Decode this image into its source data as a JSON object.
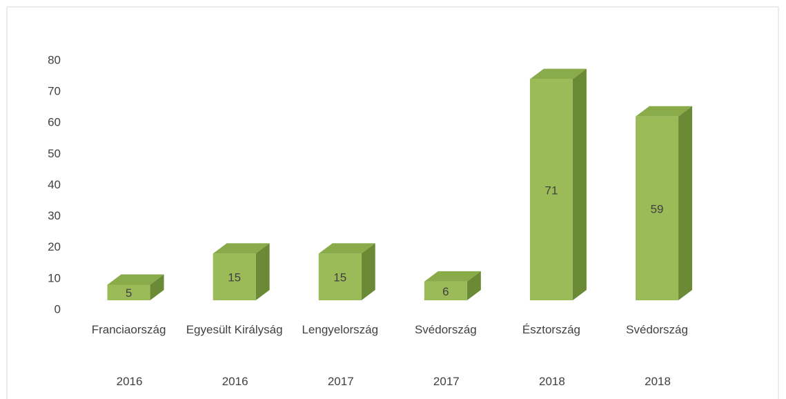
{
  "chart_data": {
    "type": "bar3d",
    "categories": [
      "Franciaország",
      "Egyesült Királyság",
      "Lengyelország",
      "Svédország",
      "Észtország",
      "Svédország"
    ],
    "years": [
      "2016",
      "2016",
      "2017",
      "2017",
      "2018",
      "2018"
    ],
    "values": [
      5,
      15,
      15,
      6,
      71,
      59
    ],
    "color": "#9bbb59",
    "ylim": [
      0,
      80
    ],
    "yticks": [
      0,
      10,
      20,
      30,
      40,
      50,
      60,
      70,
      80
    ]
  }
}
